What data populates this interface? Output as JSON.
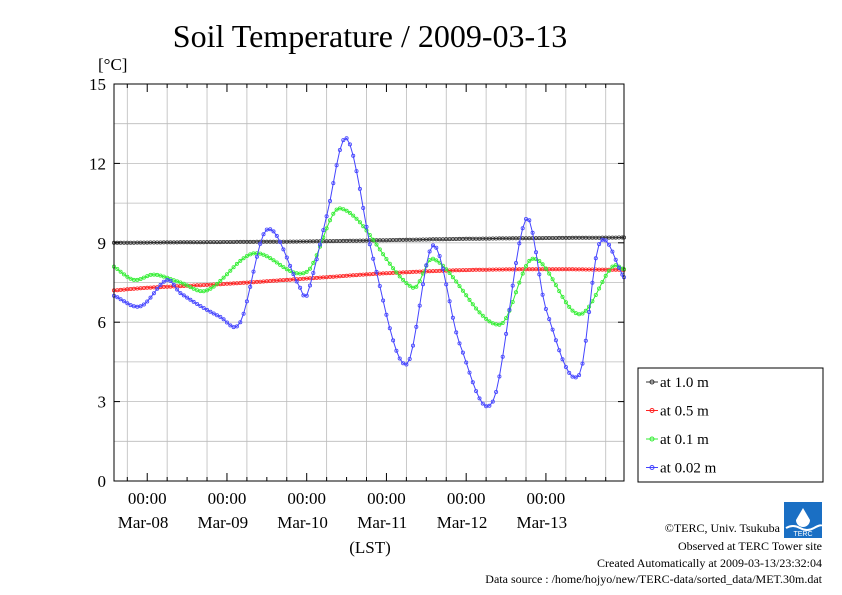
{
  "chart_data": {
    "type": "line",
    "title": "Soil Temperature / 2009-03-13",
    "ylabel": "[°C]",
    "xlabel": "(LST)",
    "ylim": [
      0,
      15
    ],
    "yticks": [
      0,
      3,
      6,
      9,
      12,
      15
    ],
    "xlim": [
      "2009-03-07T14:00",
      "2009-03-13T23:30"
    ],
    "x_tick_labels": [
      {
        "time": "00:00",
        "date": "Mar-08"
      },
      {
        "time": "00:00",
        "date": "Mar-09"
      },
      {
        "time": "00:00",
        "date": "Mar-10"
      },
      {
        "time": "00:00",
        "date": "Mar-11"
      },
      {
        "time": "00:00",
        "date": "Mar-12"
      },
      {
        "time": "00:00",
        "date": "Mar-13"
      }
    ],
    "grid": true,
    "legend_position": "right",
    "series": [
      {
        "name": "at 1.0 m",
        "color": "#333333",
        "points": [
          [
            "2009-03-07T14:00",
            9.0
          ],
          [
            "2009-03-09T00:00",
            9.03
          ],
          [
            "2009-03-10T00:00",
            9.05
          ],
          [
            "2009-03-11T00:00",
            9.1
          ],
          [
            "2009-03-12T00:00",
            9.15
          ],
          [
            "2009-03-13T00:00",
            9.18
          ],
          [
            "2009-03-13T23:30",
            9.2
          ]
        ]
      },
      {
        "name": "at 0.5 m",
        "color": "#ff2222",
        "points": [
          [
            "2009-03-07T14:00",
            7.2
          ],
          [
            "2009-03-08T00:00",
            7.3
          ],
          [
            "2009-03-09T00:00",
            7.45
          ],
          [
            "2009-03-10T00:00",
            7.65
          ],
          [
            "2009-03-11T00:00",
            7.85
          ],
          [
            "2009-03-12T00:00",
            7.97
          ],
          [
            "2009-03-13T00:00",
            8.0
          ],
          [
            "2009-03-13T23:30",
            7.98
          ]
        ]
      },
      {
        "name": "at 0.1 m",
        "color": "#33ee33",
        "points": [
          [
            "2009-03-07T14:00",
            8.1
          ],
          [
            "2009-03-07T20:00",
            7.6
          ],
          [
            "2009-03-08T02:00",
            7.8
          ],
          [
            "2009-03-08T10:00",
            7.5
          ],
          [
            "2009-03-08T18:00",
            7.2
          ],
          [
            "2009-03-09T08:00",
            8.6
          ],
          [
            "2009-03-10T00:00",
            7.9
          ],
          [
            "2009-03-10T10:00",
            10.3
          ],
          [
            "2009-03-11T08:00",
            7.3
          ],
          [
            "2009-03-11T14:00",
            8.4
          ],
          [
            "2009-03-12T10:00",
            5.9
          ],
          [
            "2009-03-12T20:00",
            8.4
          ],
          [
            "2009-03-13T10:00",
            6.3
          ],
          [
            "2009-03-13T20:00",
            8.1
          ],
          [
            "2009-03-13T23:30",
            8.0
          ]
        ]
      },
      {
        "name": "at 0.02 m",
        "color": "#4444ff",
        "points": [
          [
            "2009-03-07T14:00",
            7.0
          ],
          [
            "2009-03-07T22:00",
            6.6
          ],
          [
            "2009-03-08T06:00",
            7.6
          ],
          [
            "2009-03-08T10:00",
            7.1
          ],
          [
            "2009-03-08T22:00",
            6.2
          ],
          [
            "2009-03-09T04:00",
            6.0
          ],
          [
            "2009-03-09T12:00",
            9.5
          ],
          [
            "2009-03-09T22:00",
            7.3
          ],
          [
            "2009-03-10T00:00",
            7.0
          ],
          [
            "2009-03-10T06:00",
            10.0
          ],
          [
            "2009-03-10T12:00",
            12.95
          ],
          [
            "2009-03-10T20:00",
            8.4
          ],
          [
            "2009-03-11T06:00",
            4.4
          ],
          [
            "2009-03-11T14:00",
            8.9
          ],
          [
            "2009-03-11T22:00",
            5.2
          ],
          [
            "2009-03-12T08:00",
            3.0
          ],
          [
            "2009-03-12T18:00",
            9.9
          ],
          [
            "2009-03-13T00:00",
            6.5
          ],
          [
            "2009-03-13T10:00",
            4.0
          ],
          [
            "2009-03-13T16:00",
            8.95
          ],
          [
            "2009-03-13T23:30",
            7.7
          ]
        ]
      }
    ]
  },
  "footer": {
    "copyright": "©TERC, Univ. Tsukuba",
    "observed": "Observed at TERC Tower site",
    "created": "Created Automatically at 2009-03-13/23:32:04",
    "source": "Data source : /home/hojyo/new/TERC-data/sorted_data/MET.30m.dat"
  },
  "logo": {
    "text": "TERC"
  }
}
